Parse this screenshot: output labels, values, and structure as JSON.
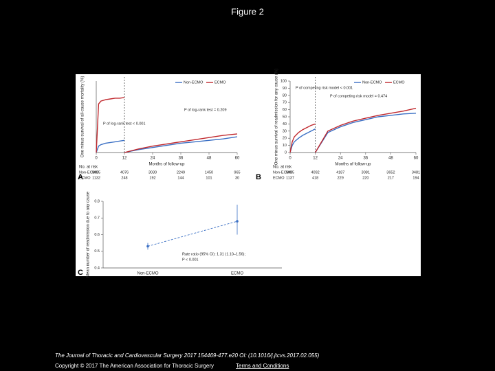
{
  "title": "Figure 2",
  "chart_data": [
    {
      "type": "line",
      "panel": "A",
      "ylabel": "One minus survival of all-cause mortality (%)",
      "xlabel": "Months of follow-up",
      "xlim": [
        0,
        60
      ],
      "xticks": [
        0,
        12,
        24,
        36,
        48,
        60
      ],
      "ylim": [
        0,
        100
      ],
      "landmark": 12,
      "x": [
        0,
        1,
        2,
        4,
        6,
        8,
        10,
        12,
        12,
        12,
        18,
        24,
        30,
        36,
        42,
        48,
        54,
        60
      ],
      "series": [
        {
          "name": "Non-ECMO",
          "color": "#3a6fc4",
          "values": [
            0,
            9,
            11,
            13,
            14,
            15,
            16,
            17,
            null,
            0,
            4,
            7,
            10,
            13,
            15,
            17,
            19,
            22
          ]
        },
        {
          "name": "ECMO",
          "color": "#c0282d",
          "values": [
            0,
            68,
            72,
            74,
            75,
            76,
            76,
            77,
            null,
            0,
            5,
            9,
            12,
            15,
            18,
            21,
            24,
            26
          ]
        }
      ],
      "annotations": [
        "P of log-rank test < 0.001",
        "P of log-rank test = 0.209"
      ],
      "at_risk": {
        "title": "No. at risk",
        "rows": [
          {
            "name": "Non-ECMO",
            "values": [
              5085,
              4076,
              3030,
              2249,
              1450,
              965
            ]
          },
          {
            "name": "ECMO",
            "values": [
              1132,
              248,
              192,
              144,
              101,
              30
            ]
          }
        ]
      }
    },
    {
      "type": "line",
      "panel": "B",
      "ylabel": "One minus survival of readmission for any cause (%)",
      "xlabel": "Months of follow-up",
      "xlim": [
        0,
        60
      ],
      "xticks": [
        0,
        12,
        24,
        36,
        48,
        60
      ],
      "ylim": [
        0,
        100
      ],
      "yticks": [
        0,
        10,
        20,
        30,
        40,
        50,
        60,
        70,
        80,
        90,
        100
      ],
      "landmark": 12,
      "x": [
        0,
        1,
        2,
        4,
        6,
        8,
        10,
        12,
        12,
        12,
        18,
        24,
        30,
        36,
        42,
        48,
        54,
        60
      ],
      "series": [
        {
          "name": "Non-ECMO",
          "color": "#3a6fc4",
          "values": [
            0,
            10,
            15,
            20,
            24,
            27,
            30,
            33,
            null,
            0,
            28,
            36,
            42,
            46,
            50,
            52,
            54,
            55
          ]
        },
        {
          "name": "ECMO",
          "color": "#c0282d",
          "values": [
            0,
            15,
            22,
            28,
            32,
            35,
            38,
            40,
            null,
            0,
            30,
            38,
            44,
            48,
            52,
            55,
            58,
            62
          ]
        }
      ],
      "annotations": [
        "P of competing risk model < 0.001",
        "P of competing risk model = 0.474"
      ],
      "at_risk": {
        "title": "No. at risk",
        "rows": [
          {
            "name": "Non-ECMO",
            "values": [
              5085,
              4092,
              4187,
              3081,
              3652,
              3481
            ]
          },
          {
            "name": "ECMO",
            "values": [
              1137,
              418,
              229,
              220,
              217,
              194
            ]
          }
        ]
      }
    },
    {
      "type": "errorbar",
      "panel": "C",
      "ylabel": "Mean number of readmission due to any cause",
      "categories": [
        "Non-ECMO",
        "ECMO"
      ],
      "values": [
        0.53,
        0.68
      ],
      "lower": [
        0.51,
        0.6
      ],
      "upper": [
        0.55,
        0.78
      ],
      "color": "#3a6fc4",
      "ylim": [
        0.4,
        0.8
      ],
      "yticks": [
        0.4,
        0.5,
        0.6,
        0.7,
        0.8
      ],
      "annotations": [
        "Rate ratio (95% CI): 1.31 (1.10–1.56);",
        "P < 0.001"
      ]
    }
  ],
  "footer": {
    "citation": "The Journal of Thoracic and Cardiovascular Surgery 2017 154469-477.e20 OI: (10.1016/j.jtcvs.2017.02.055)",
    "copyright": "Copyright © 2017 The American Association for Thoracic Surgery",
    "link": "Terms and Conditions"
  }
}
